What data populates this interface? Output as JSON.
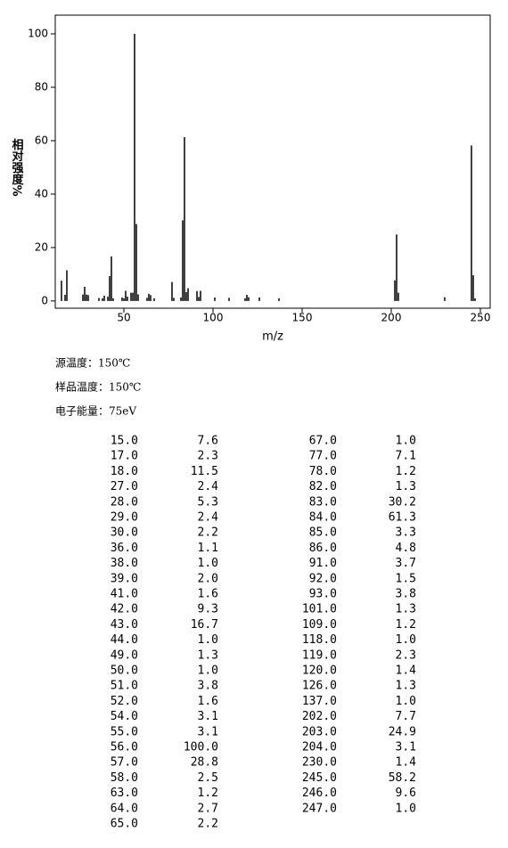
{
  "chart_data": {
    "type": "stem",
    "y_label": "相对强度%",
    "x_label": "m/z",
    "x": [
      15,
      17,
      18,
      27,
      28,
      29,
      30,
      36,
      38,
      39,
      41,
      42,
      43,
      44,
      49,
      50,
      51,
      52,
      54,
      55,
      56,
      57,
      58,
      63,
      64,
      65,
      67,
      77,
      78,
      82,
      83,
      84,
      85,
      86,
      91,
      92,
      93,
      101,
      109,
      118,
      119,
      120,
      126,
      137,
      202,
      203,
      204,
      230,
      245,
      246,
      247
    ],
    "x_labels": [
      "15.0",
      "17.0",
      "18.0",
      "27.0",
      "28.0",
      "29.0",
      "30.0",
      "36.0",
      "38.0",
      "39.0",
      "41.0",
      "42.0",
      "43.0",
      "44.0",
      "49.0",
      "50.0",
      "51.0",
      "52.0",
      "54.0",
      "55.0",
      "56.0",
      "57.0",
      "58.0",
      "63.0",
      "64.0",
      "65.0",
      "67.0",
      "77.0",
      "78.0",
      "82.0",
      "83.0",
      "84.0",
      "85.0",
      "86.0",
      "91.0",
      "92.0",
      "93.0",
      "101.0",
      "109.0",
      "118.0",
      "119.0",
      "120.0",
      "126.0",
      "137.0",
      "202.0",
      "203.0",
      "204.0",
      "230.0",
      "245.0",
      "246.0",
      "247.0"
    ],
    "values": [
      7.6,
      2.3,
      11.5,
      2.4,
      5.3,
      2.4,
      2.2,
      1.1,
      1.0,
      2.0,
      1.6,
      9.3,
      16.7,
      1.0,
      1.3,
      1.0,
      3.8,
      1.6,
      3.1,
      3.1,
      100.0,
      28.8,
      2.5,
      1.2,
      2.7,
      2.2,
      1.0,
      7.1,
      1.2,
      1.3,
      30.2,
      61.3,
      3.3,
      4.8,
      3.7,
      1.5,
      3.8,
      1.3,
      1.2,
      1.0,
      2.3,
      1.4,
      1.3,
      1.0,
      7.7,
      24.9,
      3.1,
      1.4,
      58.2,
      9.6,
      1.0
    ],
    "value_labels": [
      "7.6",
      "2.3",
      "11.5",
      "2.4",
      "5.3",
      "2.4",
      "2.2",
      "1.1",
      "1.0",
      "2.0",
      "1.6",
      "9.3",
      "16.7",
      "1.0",
      "1.3",
      "1.0",
      "3.8",
      "1.6",
      "3.1",
      "3.1",
      "100.0",
      "28.8",
      "2.5",
      "1.2",
      "2.7",
      "2.2",
      "1.0",
      "7.1",
      "1.2",
      "1.3",
      "30.2",
      "61.3",
      "3.3",
      "4.8",
      "3.7",
      "1.5",
      "3.8",
      "1.3",
      "1.2",
      "1.0",
      "2.3",
      "1.4",
      "1.3",
      "1.0",
      "7.7",
      "24.9",
      "3.1",
      "1.4",
      "58.2",
      "9.6",
      "1.0"
    ],
    "color": "#000000",
    "xlim": [
      11.5,
      255.5
    ],
    "xticks": [
      50,
      100,
      150,
      200,
      250
    ],
    "ylim": [
      -2.7,
      107
    ],
    "yticks": [
      0,
      20,
      40,
      60,
      80,
      100
    ]
  },
  "notes": [
    "源温度：150℃",
    "样品温度：150℃",
    "电子能量：75eV"
  ]
}
